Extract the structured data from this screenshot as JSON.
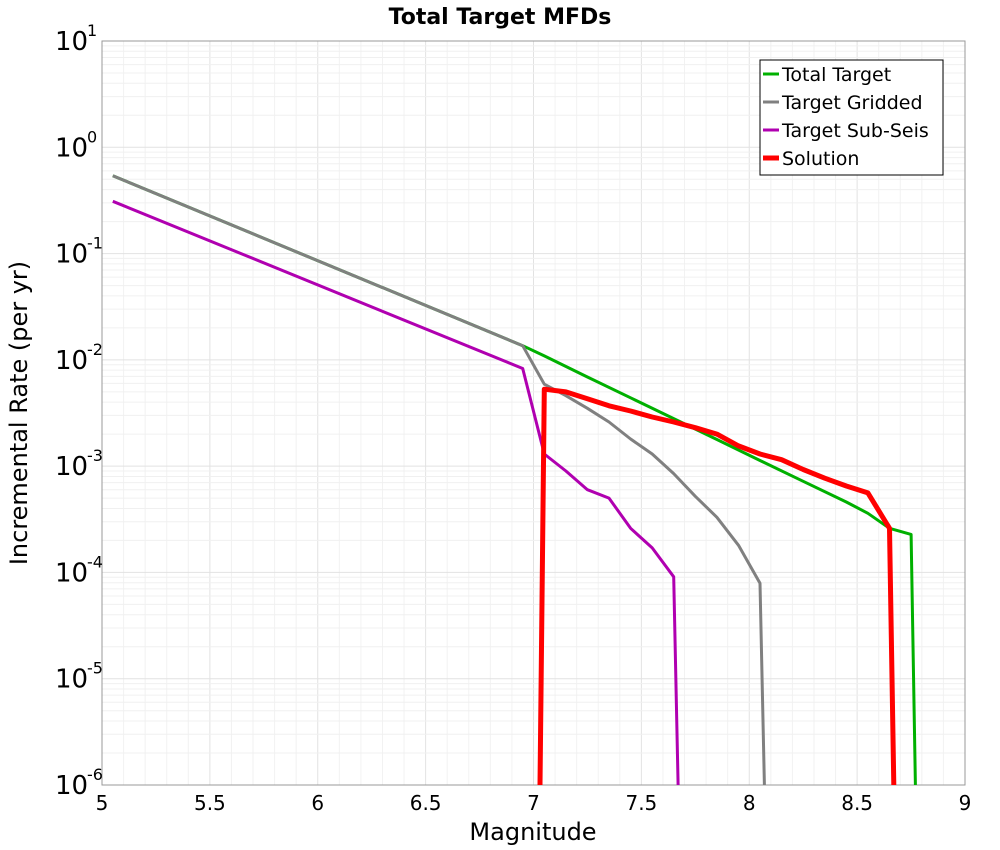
{
  "chart_data": {
    "type": "line",
    "title": "Total Target MFDs",
    "xlabel": "Magnitude",
    "ylabel": "Incremental Rate (per yr)",
    "xlim": [
      5,
      9
    ],
    "ylim": [
      1e-06,
      10
    ],
    "yscale": "log",
    "x_ticks": [
      "5",
      "5.5",
      "6",
      "6.5",
      "7",
      "7.5",
      "8",
      "8.5",
      "9"
    ],
    "y_ticks": [
      {
        "base": "10",
        "exp": "1",
        "value": 10
      },
      {
        "base": "10",
        "exp": "0",
        "value": 1
      },
      {
        "base": "10",
        "exp": "-1",
        "value": 0.1
      },
      {
        "base": "10",
        "exp": "-2",
        "value": 0.01
      },
      {
        "base": "10",
        "exp": "-3",
        "value": 0.001
      },
      {
        "base": "10",
        "exp": "-4",
        "value": 0.0001
      },
      {
        "base": "10",
        "exp": "-5",
        "value": 1e-05
      },
      {
        "base": "10",
        "exp": "-6",
        "value": 1e-06
      }
    ],
    "grid": true,
    "legend_position": "top-right",
    "series": [
      {
        "name": "Total Target",
        "color": "#00b000",
        "width": 3,
        "points": [
          [
            5.05,
            0.54
          ],
          [
            6.95,
            0.0136
          ],
          [
            7.05,
            0.0109
          ],
          [
            7.25,
            0.0069
          ],
          [
            7.45,
            0.0044
          ],
          [
            7.65,
            0.0028
          ],
          [
            7.85,
            0.00178
          ],
          [
            8.05,
            0.00113
          ],
          [
            8.25,
            0.00072
          ],
          [
            8.45,
            0.00046
          ],
          [
            8.55,
            0.00036
          ],
          [
            8.65,
            0.00026
          ],
          [
            8.75,
            0.000228
          ],
          [
            8.77,
            1e-06
          ]
        ]
      },
      {
        "name": "Target Gridded",
        "color": "#808080",
        "width": 3,
        "points": [
          [
            5.05,
            0.54
          ],
          [
            6.95,
            0.0136
          ],
          [
            7.05,
            0.0059
          ],
          [
            7.15,
            0.0046
          ],
          [
            7.25,
            0.0035
          ],
          [
            7.35,
            0.0026
          ],
          [
            7.45,
            0.0018
          ],
          [
            7.55,
            0.0013
          ],
          [
            7.65,
            0.00085
          ],
          [
            7.75,
            0.00052
          ],
          [
            7.85,
            0.00033
          ],
          [
            7.95,
            0.00018
          ],
          [
            8.05,
            7.9e-05
          ],
          [
            8.07,
            1e-06
          ]
        ]
      },
      {
        "name": "Target Sub-Seis",
        "color": "#b000b0",
        "width": 3,
        "points": [
          [
            5.05,
            0.31
          ],
          [
            6.95,
            0.0083
          ],
          [
            7.05,
            0.0013
          ],
          [
            7.15,
            0.0009
          ],
          [
            7.25,
            0.0006
          ],
          [
            7.35,
            0.0005
          ],
          [
            7.45,
            0.00026
          ],
          [
            7.55,
            0.00017
          ],
          [
            7.65,
            9.1e-05
          ],
          [
            7.67,
            1e-06
          ]
        ]
      },
      {
        "name": "Solution",
        "color": "#ff0000",
        "width": 5,
        "points": [
          [
            7.03,
            1e-06
          ],
          [
            7.05,
            0.0053
          ],
          [
            7.15,
            0.005
          ],
          [
            7.25,
            0.0043
          ],
          [
            7.35,
            0.0037
          ],
          [
            7.45,
            0.0033
          ],
          [
            7.55,
            0.0029
          ],
          [
            7.65,
            0.0026
          ],
          [
            7.75,
            0.0023
          ],
          [
            7.85,
            0.002
          ],
          [
            7.95,
            0.00155
          ],
          [
            8.05,
            0.0013
          ],
          [
            8.15,
            0.00115
          ],
          [
            8.25,
            0.00093
          ],
          [
            8.35,
            0.00077
          ],
          [
            8.45,
            0.00065
          ],
          [
            8.55,
            0.00056
          ],
          [
            8.65,
            0.00026
          ],
          [
            8.67,
            1e-06
          ]
        ]
      }
    ]
  }
}
